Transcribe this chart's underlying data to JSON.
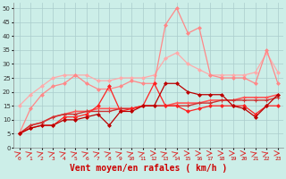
{
  "background_color": "#cceee8",
  "grid_color": "#aacccc",
  "xlabel": "Vent moyen/en rafales ( km/h )",
  "xlabel_color": "#cc0000",
  "xlabel_fontsize": 7,
  "ylabel_ticks": [
    0,
    5,
    10,
    15,
    20,
    25,
    30,
    35,
    40,
    45,
    50
  ],
  "xlim": [
    -0.5,
    23.5
  ],
  "ylim": [
    0,
    52
  ],
  "x": [
    0,
    1,
    2,
    3,
    4,
    5,
    6,
    7,
    8,
    9,
    10,
    11,
    12,
    13,
    14,
    15,
    16,
    17,
    18,
    19,
    20,
    21,
    22,
    23
  ],
  "line_lightpink_y": [
    15,
    19,
    22,
    25,
    26,
    26,
    26,
    24,
    24,
    25,
    25,
    25,
    26,
    32,
    34,
    30,
    28,
    26,
    26,
    26,
    26,
    27,
    34,
    27
  ],
  "line_lightpink_color": "#ffaaaa",
  "line_pink_y": [
    5,
    14,
    19,
    22,
    23,
    26,
    23,
    21,
    21,
    22,
    24,
    23,
    23,
    44,
    50,
    41,
    43,
    26,
    25,
    25,
    25,
    23,
    35,
    23
  ],
  "line_pink_color": "#ff8888",
  "line_medred_y": [
    5,
    8,
    9,
    11,
    12,
    13,
    13,
    14,
    14,
    14,
    14,
    15,
    15,
    15,
    16,
    16,
    16,
    17,
    17,
    17,
    18,
    18,
    18,
    19
  ],
  "line_medred_color": "#ff5555",
  "line_darkpink_y": [
    5,
    8,
    9,
    11,
    12,
    12,
    13,
    13,
    13,
    14,
    14,
    15,
    15,
    15,
    15,
    15,
    16,
    16,
    17,
    17,
    17,
    17,
    17,
    18
  ],
  "line_darkpink_color": "#cc3333",
  "line_red2_y": [
    5,
    7,
    8,
    8,
    11,
    11,
    12,
    15,
    22,
    13,
    14,
    15,
    23,
    15,
    15,
    13,
    14,
    15,
    15,
    15,
    15,
    12,
    15,
    15
  ],
  "line_red2_color": "#ff2222",
  "line_red1_y": [
    5,
    7,
    8,
    8,
    10,
    10,
    11,
    12,
    8,
    13,
    13,
    15,
    15,
    23,
    23,
    20,
    19,
    19,
    19,
    15,
    14,
    11,
    15,
    19
  ],
  "line_red1_color": "#bb0000",
  "arrow_angles": [
    45,
    45,
    45,
    45,
    45,
    45,
    45,
    45,
    45,
    45,
    45,
    45,
    0,
    45,
    45,
    0,
    0,
    0,
    0,
    0,
    0,
    45,
    45,
    0
  ],
  "xtick_labels": [
    "0",
    "1",
    "2",
    "3",
    "4",
    "5",
    "6",
    "7",
    "8",
    "9",
    "10",
    "11",
    "12",
    "13",
    "14",
    "15",
    "16",
    "17",
    "18",
    "19",
    "20",
    "21",
    "22",
    "23"
  ]
}
